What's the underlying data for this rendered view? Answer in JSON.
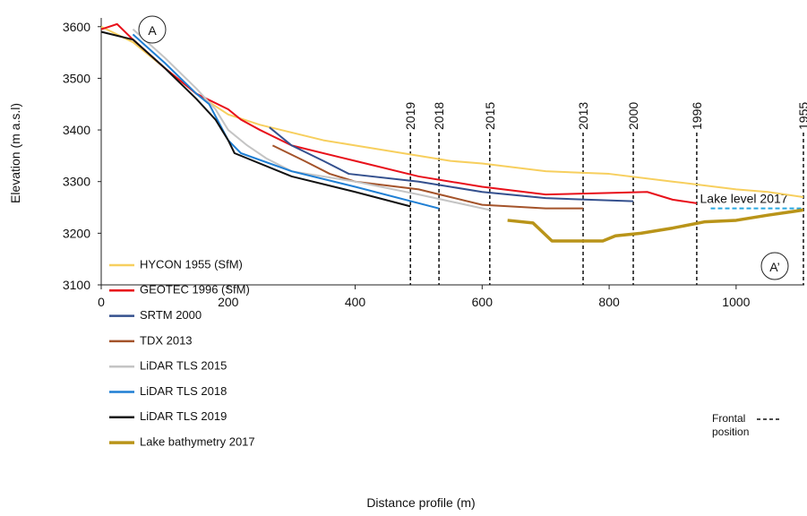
{
  "chart_data": {
    "type": "line",
    "xlabel": "Distance profile (m)",
    "ylabel": "Elevation (m a.s.l)",
    "xlim": [
      0,
      1106
    ],
    "ylim": [
      3100,
      3610
    ],
    "xticks": [
      0,
      200,
      400,
      600,
      800,
      1000
    ],
    "yticks": [
      3100,
      3200,
      3300,
      3400,
      3500,
      3600
    ],
    "series": [
      {
        "name": "HYCON 1955 (SfM)",
        "color": "#f7cf5e",
        "x": [
          0,
          50,
          100,
          150,
          200,
          250,
          300,
          350,
          400,
          450,
          500,
          550,
          600,
          700,
          800,
          900,
          1000,
          1050,
          1106
        ],
        "values": [
          3600,
          3570,
          3520,
          3470,
          3430,
          3410,
          3395,
          3380,
          3370,
          3360,
          3350,
          3340,
          3335,
          3320,
          3315,
          3300,
          3285,
          3280,
          3270
        ]
      },
      {
        "name": "GEOTEC 1996 (SfM)",
        "color": "#e8101a",
        "x": [
          0,
          25,
          50,
          100,
          150,
          200,
          220,
          250,
          300,
          400,
          500,
          600,
          700,
          800,
          860,
          900,
          938
        ],
        "values": [
          3595,
          3605,
          3575,
          3520,
          3470,
          3440,
          3420,
          3400,
          3370,
          3340,
          3310,
          3290,
          3275,
          3278,
          3280,
          3265,
          3258
        ]
      },
      {
        "name": "SRTM 2000",
        "color": "#34508e",
        "x": [
          265,
          300,
          350,
          390,
          500,
          600,
          700,
          838
        ],
        "values": [
          3405,
          3370,
          3340,
          3315,
          3300,
          3280,
          3268,
          3262
        ]
      },
      {
        "name": "TDX 2013",
        "color": "#a4532a",
        "x": [
          270,
          320,
          360,
          400,
          500,
          550,
          600,
          700,
          759
        ],
        "values": [
          3370,
          3340,
          3315,
          3300,
          3285,
          3270,
          3255,
          3248,
          3248
        ]
      },
      {
        "name": "LiDAR TLS 2015",
        "color": "#c4c4c4",
        "x": [
          50,
          100,
          150,
          180,
          200,
          230,
          260,
          300,
          400,
          500,
          612
        ],
        "values": [
          3595,
          3540,
          3480,
          3440,
          3400,
          3370,
          3345,
          3320,
          3300,
          3275,
          3245
        ]
      },
      {
        "name": "LiDAR TLS 2018",
        "color": "#1f7fd4",
        "x": [
          50,
          100,
          150,
          170,
          200,
          220,
          300,
          400,
          532
        ],
        "values": [
          3585,
          3530,
          3470,
          3450,
          3380,
          3355,
          3320,
          3290,
          3248
        ]
      },
      {
        "name": "LiDAR TLS 2019",
        "color": "#111111",
        "x": [
          0,
          50,
          100,
          150,
          180,
          200,
          210,
          300,
          400,
          487
        ],
        "values": [
          3590,
          3575,
          3520,
          3460,
          3420,
          3380,
          3355,
          3310,
          3280,
          3252
        ]
      },
      {
        "name": "Lake bathymetry 2017",
        "color": "#b99419",
        "x": [
          640,
          680,
          710,
          790,
          810,
          850,
          900,
          950,
          1000,
          1050,
          1106
        ],
        "values": [
          3225,
          3220,
          3185,
          3185,
          3195,
          3200,
          3210,
          3222,
          3225,
          3235,
          3245
        ]
      }
    ],
    "frontal_positions": [
      {
        "label": "2019",
        "x": 487
      },
      {
        "label": "2018",
        "x": 532
      },
      {
        "label": "2015",
        "x": 612
      },
      {
        "label": "2013",
        "x": 759
      },
      {
        "label": "2000",
        "x": 838
      },
      {
        "label": "1996",
        "x": 938
      },
      {
        "label": "1955",
        "x": 1106
      }
    ],
    "frontal_legend": "Frontal position",
    "lake_level": {
      "label": "Lake level 2017",
      "value": 3248,
      "x": [
        960,
        1106
      ],
      "color": "#29a8e0"
    },
    "section_labels": [
      "A",
      "A’"
    ]
  }
}
